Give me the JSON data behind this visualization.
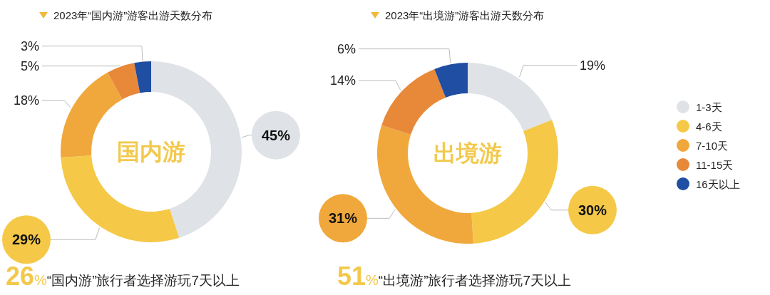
{
  "chart_data": [
    {
      "type": "donut",
      "title": "2023年“国内游”游客出游天数分布",
      "categories": [
        null,
        null,
        null,
        null,
        null
      ],
      "values": [
        45,
        29,
        18,
        5,
        3
      ],
      "value_labels": [
        "45%",
        "29%",
        "18%",
        "5%",
        "3%"
      ],
      "colors": [
        "#dfe2e6",
        "#f5c947",
        "#f0a83c",
        "#e8893a",
        "#1f4ea3"
      ],
      "annotations": [
        "国内游",
        "26%“国内游”旅行者选择游玩7天以上"
      ]
    },
    {
      "type": "donut",
      "title": "2023年“出境游”游客出游天数分布",
      "categories": [
        "1-3天",
        "4-6天",
        "7-10天",
        "11-15天",
        "16天以上"
      ],
      "values": [
        19,
        30,
        31,
        14,
        6
      ],
      "value_labels": [
        "19%",
        "30%",
        "31%",
        "14%",
        "6%"
      ],
      "colors": [
        "#dfe2e6",
        "#f5c947",
        "#f0a83c",
        "#e8893a",
        "#1f4ea3"
      ],
      "legend": "right",
      "annotations": [
        "出境游",
        "51%“出境游”旅行者选择游玩7天以上"
      ]
    }
  ]
}
